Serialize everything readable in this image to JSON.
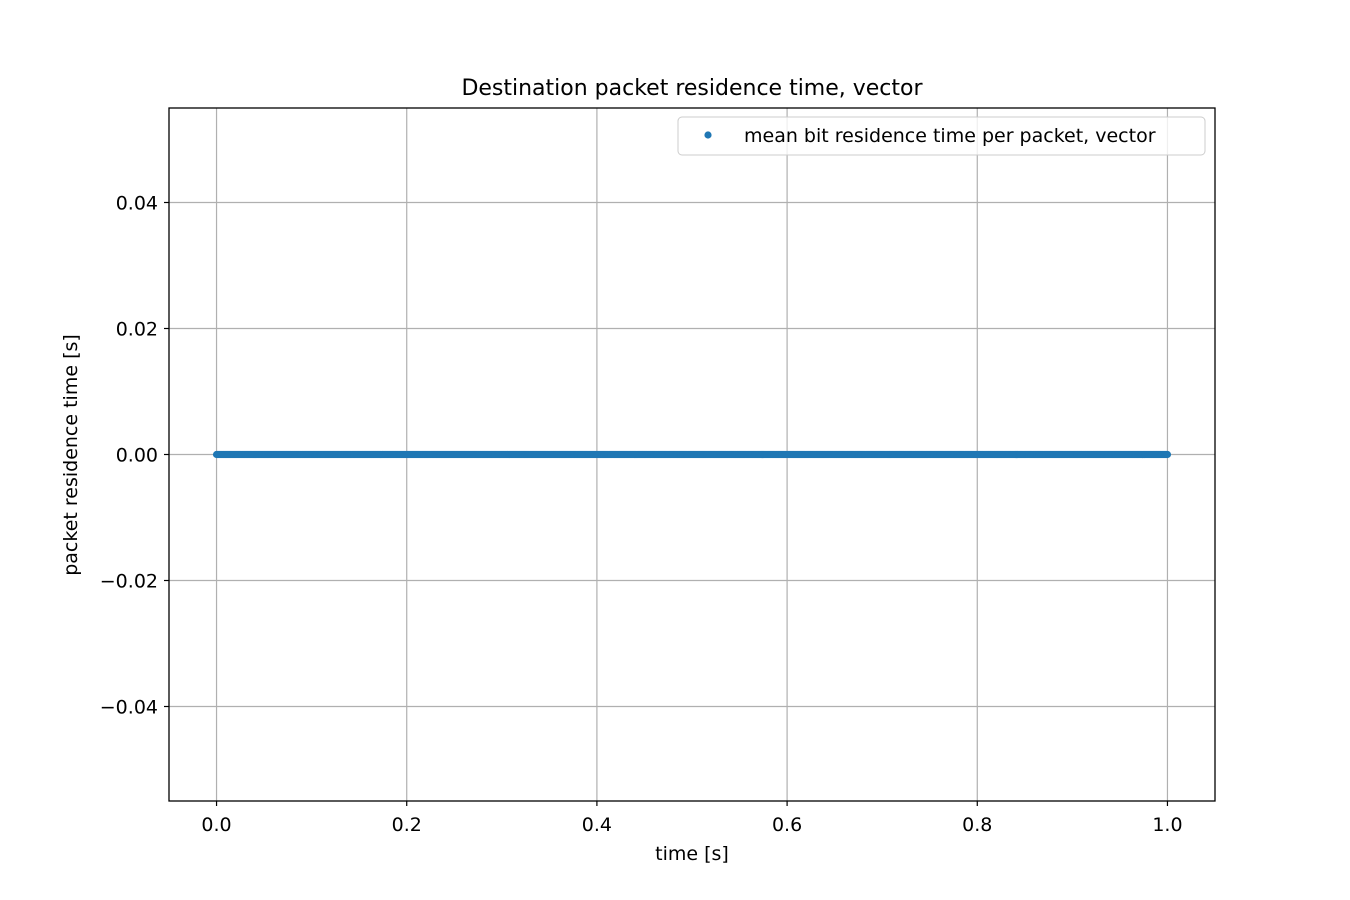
{
  "chart_data": {
    "type": "scatter",
    "title": "Destination packet residence time, vector",
    "xlabel": "time [s]",
    "ylabel": "packet residence time [s]",
    "xlim": [
      -0.05,
      1.05
    ],
    "ylim": [
      -0.055,
      0.055
    ],
    "xticks": [
      0.0,
      0.2,
      0.4,
      0.6,
      0.8,
      1.0
    ],
    "xtick_labels": [
      "0.0",
      "0.2",
      "0.4",
      "0.6",
      "0.8",
      "1.0"
    ],
    "yticks": [
      0.04,
      0.02,
      0.0,
      -0.02,
      -0.04
    ],
    "ytick_labels": [
      "0.04",
      "0.02",
      "0.00",
      "−0.02",
      "−0.04"
    ],
    "grid": true,
    "legend_position": "top-right",
    "series": [
      {
        "name": "mean bit residence time per packet, vector",
        "color": "#1f77b4",
        "marker": "point",
        "x_start": 0.0,
        "x_end": 1.0,
        "point_count": 1000,
        "y_constant": 0.0
      }
    ]
  }
}
